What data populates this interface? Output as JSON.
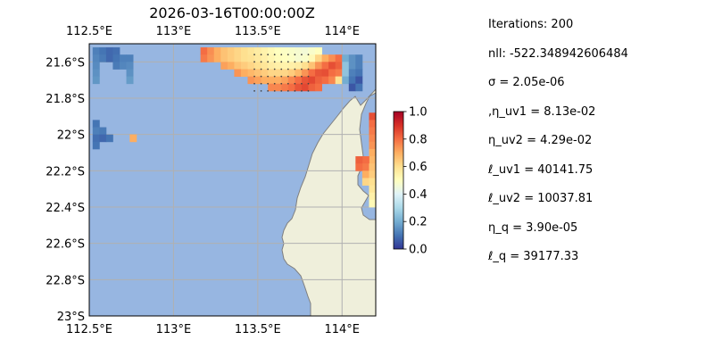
{
  "chart_data": {
    "type": "heatmap",
    "title": "2026-03-16T00:00:00Z",
    "x_ticks": [
      "112.5°E",
      "113°E",
      "113.5°E",
      "114°E"
    ],
    "x_tick_values": [
      112.5,
      113.0,
      113.5,
      114.0
    ],
    "y_ticks": [
      "21.6°S",
      "21.8°S",
      "22°S",
      "22.2°S",
      "22.4°S",
      "22.6°S",
      "22.8°S",
      "23°S"
    ],
    "y_tick_values": [
      -21.6,
      -21.8,
      -22.0,
      -22.2,
      -22.4,
      -22.6,
      -22.8,
      -23.0
    ],
    "xlim": [
      112.5,
      114.2
    ],
    "ylim": [
      -23.0,
      -21.5
    ],
    "grid": true,
    "colorbar": {
      "colormap": "RdYlBu_r",
      "range": [
        0.0,
        1.0
      ],
      "tick_labels": [
        "0.0",
        "0.2",
        "0.4",
        "0.6",
        "0.8",
        "1.0"
      ],
      "tick_values": [
        0.0,
        0.2,
        0.4,
        0.6,
        0.8,
        1.0
      ]
    },
    "cell_size_deg": 0.04,
    "cells": [
      {
        "lon": 112.52,
        "lat": -21.52,
        "value": 0.12
      },
      {
        "lon": 112.56,
        "lat": -21.52,
        "value": 0.1
      },
      {
        "lon": 112.6,
        "lat": -21.52,
        "value": 0.08
      },
      {
        "lon": 112.64,
        "lat": -21.52,
        "value": 0.09
      },
      {
        "lon": 112.52,
        "lat": -21.56,
        "value": 0.13
      },
      {
        "lon": 112.56,
        "lat": -21.56,
        "value": 0.11
      },
      {
        "lon": 112.6,
        "lat": -21.56,
        "value": 0.08
      },
      {
        "lon": 112.64,
        "lat": -21.56,
        "value": 0.1
      },
      {
        "lon": 112.68,
        "lat": -21.56,
        "value": 0.12
      },
      {
        "lon": 112.72,
        "lat": -21.56,
        "value": 0.12
      },
      {
        "lon": 112.52,
        "lat": -21.6,
        "value": 0.14
      },
      {
        "lon": 112.64,
        "lat": -21.6,
        "value": 0.11
      },
      {
        "lon": 112.68,
        "lat": -21.6,
        "value": 0.13
      },
      {
        "lon": 112.72,
        "lat": -21.6,
        "value": 0.14
      },
      {
        "lon": 112.52,
        "lat": -21.64,
        "value": 0.15
      },
      {
        "lon": 112.72,
        "lat": -21.64,
        "value": 0.15
      },
      {
        "lon": 112.52,
        "lat": -21.68,
        "value": 0.16
      },
      {
        "lon": 112.72,
        "lat": -21.68,
        "value": 0.17
      },
      {
        "lon": 112.52,
        "lat": -21.92,
        "value": 0.1
      },
      {
        "lon": 112.52,
        "lat": -21.96,
        "value": 0.12
      },
      {
        "lon": 112.52,
        "lat": -22.0,
        "value": 0.09
      },
      {
        "lon": 112.56,
        "lat": -21.96,
        "value": 0.11
      },
      {
        "lon": 112.56,
        "lat": -22.0,
        "value": 0.08
      },
      {
        "lon": 112.6,
        "lat": -22.0,
        "value": 0.1
      },
      {
        "lon": 112.52,
        "lat": -22.04,
        "value": 0.1
      },
      {
        "lon": 112.74,
        "lat": -22.0,
        "value": 0.7
      },
      {
        "lon": 113.16,
        "lat": -21.52,
        "value": 0.8
      },
      {
        "lon": 113.2,
        "lat": -21.52,
        "value": 0.75
      },
      {
        "lon": 113.24,
        "lat": -21.52,
        "value": 0.7
      },
      {
        "lon": 113.28,
        "lat": -21.52,
        "value": 0.66
      },
      {
        "lon": 113.32,
        "lat": -21.52,
        "value": 0.64
      },
      {
        "lon": 113.36,
        "lat": -21.52,
        "value": 0.62
      },
      {
        "lon": 113.4,
        "lat": -21.52,
        "value": 0.6
      },
      {
        "lon": 113.44,
        "lat": -21.52,
        "value": 0.58
      },
      {
        "lon": 113.48,
        "lat": -21.52,
        "value": 0.56
      },
      {
        "lon": 113.52,
        "lat": -21.52,
        "value": 0.54
      },
      {
        "lon": 113.56,
        "lat": -21.52,
        "value": 0.52
      },
      {
        "lon": 113.6,
        "lat": -21.52,
        "value": 0.5
      },
      {
        "lon": 113.64,
        "lat": -21.52,
        "value": 0.49
      },
      {
        "lon": 113.68,
        "lat": -21.52,
        "value": 0.48
      },
      {
        "lon": 113.72,
        "lat": -21.52,
        "value": 0.47
      },
      {
        "lon": 113.76,
        "lat": -21.52,
        "value": 0.46
      },
      {
        "lon": 113.8,
        "lat": -21.52,
        "value": 0.48
      },
      {
        "lon": 113.84,
        "lat": -21.52,
        "value": 0.5
      },
      {
        "lon": 113.16,
        "lat": -21.56,
        "value": 0.78
      },
      {
        "lon": 113.2,
        "lat": -21.56,
        "value": 0.74
      },
      {
        "lon": 113.24,
        "lat": -21.56,
        "value": 0.7
      },
      {
        "lon": 113.28,
        "lat": -21.56,
        "value": 0.66
      },
      {
        "lon": 113.32,
        "lat": -21.56,
        "value": 0.64
      },
      {
        "lon": 113.36,
        "lat": -21.56,
        "value": 0.62
      },
      {
        "lon": 113.4,
        "lat": -21.56,
        "value": 0.6
      },
      {
        "lon": 113.44,
        "lat": -21.56,
        "value": 0.59
      },
      {
        "lon": 113.48,
        "lat": -21.56,
        "value": 0.57
      },
      {
        "lon": 113.52,
        "lat": -21.56,
        "value": 0.55
      },
      {
        "lon": 113.56,
        "lat": -21.56,
        "value": 0.53
      },
      {
        "lon": 113.6,
        "lat": -21.56,
        "value": 0.51
      },
      {
        "lon": 113.64,
        "lat": -21.56,
        "value": 0.5
      },
      {
        "lon": 113.68,
        "lat": -21.56,
        "value": 0.49
      },
      {
        "lon": 113.72,
        "lat": -21.56,
        "value": 0.47
      },
      {
        "lon": 113.76,
        "lat": -21.56,
        "value": 0.48
      },
      {
        "lon": 113.8,
        "lat": -21.56,
        "value": 0.52
      },
      {
        "lon": 113.84,
        "lat": -21.56,
        "value": 0.62
      },
      {
        "lon": 113.88,
        "lat": -21.56,
        "value": 0.7
      },
      {
        "lon": 113.92,
        "lat": -21.56,
        "value": 0.75
      },
      {
        "lon": 113.96,
        "lat": -21.56,
        "value": 0.8
      },
      {
        "lon": 114.0,
        "lat": -21.56,
        "value": 0.2
      },
      {
        "lon": 114.04,
        "lat": -21.56,
        "value": 0.15
      },
      {
        "lon": 114.08,
        "lat": -21.56,
        "value": 0.12
      },
      {
        "lon": 113.28,
        "lat": -21.6,
        "value": 0.72
      },
      {
        "lon": 113.32,
        "lat": -21.6,
        "value": 0.7
      },
      {
        "lon": 113.36,
        "lat": -21.6,
        "value": 0.66
      },
      {
        "lon": 113.4,
        "lat": -21.6,
        "value": 0.64
      },
      {
        "lon": 113.44,
        "lat": -21.6,
        "value": 0.62
      },
      {
        "lon": 113.48,
        "lat": -21.6,
        "value": 0.6
      },
      {
        "lon": 113.52,
        "lat": -21.6,
        "value": 0.58
      },
      {
        "lon": 113.56,
        "lat": -21.6,
        "value": 0.56
      },
      {
        "lon": 113.6,
        "lat": -21.6,
        "value": 0.55
      },
      {
        "lon": 113.64,
        "lat": -21.6,
        "value": 0.54
      },
      {
        "lon": 113.68,
        "lat": -21.6,
        "value": 0.55
      },
      {
        "lon": 113.72,
        "lat": -21.6,
        "value": 0.56
      },
      {
        "lon": 113.76,
        "lat": -21.6,
        "value": 0.6
      },
      {
        "lon": 113.8,
        "lat": -21.6,
        "value": 0.66
      },
      {
        "lon": 113.84,
        "lat": -21.6,
        "value": 0.74
      },
      {
        "lon": 113.88,
        "lat": -21.6,
        "value": 0.8
      },
      {
        "lon": 113.92,
        "lat": -21.6,
        "value": 0.85
      },
      {
        "lon": 113.96,
        "lat": -21.6,
        "value": 0.82
      },
      {
        "lon": 114.0,
        "lat": -21.6,
        "value": 0.25
      },
      {
        "lon": 114.04,
        "lat": -21.6,
        "value": 0.15
      },
      {
        "lon": 114.08,
        "lat": -21.6,
        "value": 0.12
      },
      {
        "lon": 113.36,
        "lat": -21.64,
        "value": 0.74
      },
      {
        "lon": 113.4,
        "lat": -21.64,
        "value": 0.7
      },
      {
        "lon": 113.44,
        "lat": -21.64,
        "value": 0.68
      },
      {
        "lon": 113.48,
        "lat": -21.64,
        "value": 0.66
      },
      {
        "lon": 113.52,
        "lat": -21.64,
        "value": 0.64
      },
      {
        "lon": 113.56,
        "lat": -21.64,
        "value": 0.62
      },
      {
        "lon": 113.6,
        "lat": -21.64,
        "value": 0.62
      },
      {
        "lon": 113.64,
        "lat": -21.64,
        "value": 0.62
      },
      {
        "lon": 113.68,
        "lat": -21.64,
        "value": 0.64
      },
      {
        "lon": 113.72,
        "lat": -21.64,
        "value": 0.68
      },
      {
        "lon": 113.76,
        "lat": -21.64,
        "value": 0.74
      },
      {
        "lon": 113.8,
        "lat": -21.64,
        "value": 0.8
      },
      {
        "lon": 113.84,
        "lat": -21.64,
        "value": 0.84
      },
      {
        "lon": 113.88,
        "lat": -21.64,
        "value": 0.85
      },
      {
        "lon": 113.92,
        "lat": -21.64,
        "value": 0.8
      },
      {
        "lon": 113.96,
        "lat": -21.64,
        "value": 0.78
      },
      {
        "lon": 114.0,
        "lat": -21.64,
        "value": 0.25
      },
      {
        "lon": 114.04,
        "lat": -21.64,
        "value": 0.12
      },
      {
        "lon": 114.08,
        "lat": -21.64,
        "value": 0.1
      },
      {
        "lon": 113.44,
        "lat": -21.68,
        "value": 0.74
      },
      {
        "lon": 113.48,
        "lat": -21.68,
        "value": 0.72
      },
      {
        "lon": 113.52,
        "lat": -21.68,
        "value": 0.7
      },
      {
        "lon": 113.56,
        "lat": -21.68,
        "value": 0.7
      },
      {
        "lon": 113.6,
        "lat": -21.68,
        "value": 0.7
      },
      {
        "lon": 113.64,
        "lat": -21.68,
        "value": 0.72
      },
      {
        "lon": 113.68,
        "lat": -21.68,
        "value": 0.76
      },
      {
        "lon": 113.72,
        "lat": -21.68,
        "value": 0.8
      },
      {
        "lon": 113.76,
        "lat": -21.68,
        "value": 0.84
      },
      {
        "lon": 113.8,
        "lat": -21.68,
        "value": 0.86
      },
      {
        "lon": 113.84,
        "lat": -21.68,
        "value": 0.82
      },
      {
        "lon": 113.88,
        "lat": -21.68,
        "value": 0.8
      },
      {
        "lon": 113.92,
        "lat": -21.68,
        "value": 0.76
      },
      {
        "lon": 113.96,
        "lat": -21.68,
        "value": 0.6
      },
      {
        "lon": 114.0,
        "lat": -21.68,
        "value": 0.2
      },
      {
        "lon": 114.04,
        "lat": -21.68,
        "value": 0.1
      },
      {
        "lon": 114.08,
        "lat": -21.68,
        "value": 0.05
      },
      {
        "lon": 113.56,
        "lat": -21.72,
        "value": 0.76
      },
      {
        "lon": 113.6,
        "lat": -21.72,
        "value": 0.76
      },
      {
        "lon": 113.64,
        "lat": -21.72,
        "value": 0.78
      },
      {
        "lon": 113.68,
        "lat": -21.72,
        "value": 0.8
      },
      {
        "lon": 113.72,
        "lat": -21.72,
        "value": 0.84
      },
      {
        "lon": 113.76,
        "lat": -21.72,
        "value": 0.86
      },
      {
        "lon": 113.8,
        "lat": -21.72,
        "value": 0.82
      },
      {
        "lon": 113.84,
        "lat": -21.72,
        "value": 0.8
      },
      {
        "lon": 114.04,
        "lat": -21.72,
        "value": 0.05
      },
      {
        "lon": 114.08,
        "lat": -21.72,
        "value": 0.1
      },
      {
        "lon": 114.16,
        "lat": -21.88,
        "value": 0.85
      },
      {
        "lon": 114.16,
        "lat": -21.92,
        "value": 0.8
      },
      {
        "lon": 114.16,
        "lat": -21.96,
        "value": 0.78
      },
      {
        "lon": 114.16,
        "lat": -22.0,
        "value": 0.76
      },
      {
        "lon": 114.16,
        "lat": -22.04,
        "value": 0.74
      },
      {
        "lon": 114.16,
        "lat": -22.08,
        "value": 0.7
      },
      {
        "lon": 114.16,
        "lat": -22.12,
        "value": 0.68
      },
      {
        "lon": 114.12,
        "lat": -22.12,
        "value": 0.8
      },
      {
        "lon": 114.08,
        "lat": -22.12,
        "value": 0.82
      },
      {
        "lon": 114.12,
        "lat": -22.16,
        "value": 0.78
      },
      {
        "lon": 114.08,
        "lat": -22.16,
        "value": 0.8
      },
      {
        "lon": 114.16,
        "lat": -22.16,
        "value": 0.66
      },
      {
        "lon": 114.12,
        "lat": -22.2,
        "value": 0.7
      },
      {
        "lon": 114.16,
        "lat": -22.2,
        "value": 0.64
      },
      {
        "lon": 114.12,
        "lat": -22.24,
        "value": 0.62
      },
      {
        "lon": 114.16,
        "lat": -22.24,
        "value": 0.6
      },
      {
        "lon": 114.16,
        "lat": -22.28,
        "value": 0.58
      },
      {
        "lon": 114.16,
        "lat": -22.32,
        "value": 0.55
      },
      {
        "lon": 114.16,
        "lat": -22.36,
        "value": 0.52
      }
    ]
  },
  "info": {
    "iterations": "Iterations: 200",
    "nll": "nll: -522.348942606484",
    "sigma": "σ = 2.05e-06",
    "eta_uv1": ",η_uv1 = 8.13e-02",
    "eta_uv2": "η_uv2 = 4.29e-02",
    "ell_uv1": "ℓ_uv1 = 40141.75",
    "ell_uv2": "ℓ_uv2 = 10037.81",
    "eta_q": "η_q = 3.90e-05",
    "ell_q": "ℓ_q = 39177.33"
  },
  "colors": {
    "ocean": "#97b6e1",
    "land": "#efefdb",
    "coast": "#7f7f7f",
    "grid": "#b0b0b0"
  }
}
